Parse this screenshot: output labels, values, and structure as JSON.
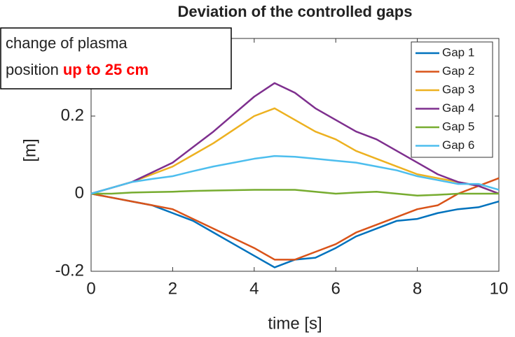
{
  "chart_data": {
    "type": "line",
    "title": "Deviation of the controlled gaps",
    "xlabel": "time [s]",
    "ylabel": "[m]",
    "annotation": {
      "line1": "change of plasma",
      "line2": "position",
      "highlight": "up to 25 cm",
      "highlight_color": "#ff0000"
    },
    "x": [
      0,
      0.5,
      1,
      1.5,
      2,
      2.5,
      3,
      3.5,
      4,
      4.5,
      5,
      5.5,
      6,
      6.5,
      7,
      7.5,
      8,
      8.5,
      9,
      9.5,
      10
    ],
    "series": [
      {
        "name": "Gap 1",
        "color": "#0072BD",
        "values": [
          0,
          -0.01,
          -0.02,
          -0.03,
          -0.05,
          -0.07,
          -0.1,
          -0.13,
          -0.16,
          -0.19,
          -0.17,
          -0.165,
          -0.14,
          -0.11,
          -0.09,
          -0.07,
          -0.065,
          -0.05,
          -0.04,
          -0.035,
          -0.02
        ]
      },
      {
        "name": "Gap 2",
        "color": "#D95319",
        "values": [
          0,
          -0.01,
          -0.02,
          -0.03,
          -0.04,
          -0.065,
          -0.09,
          -0.115,
          -0.14,
          -0.17,
          -0.17,
          -0.15,
          -0.13,
          -0.1,
          -0.08,
          -0.06,
          -0.04,
          -0.03,
          0,
          0.02,
          0.04
        ]
      },
      {
        "name": "Gap 3",
        "color": "#EDB120",
        "values": [
          0,
          0.015,
          0.03,
          0.05,
          0.07,
          0.1,
          0.13,
          0.165,
          0.2,
          0.22,
          0.19,
          0.16,
          0.14,
          0.11,
          0.09,
          0.07,
          0.05,
          0.04,
          0.03,
          0.02,
          0
        ]
      },
      {
        "name": "Gap 4",
        "color": "#7E2F8E",
        "values": [
          0,
          0.015,
          0.03,
          0.055,
          0.08,
          0.12,
          0.16,
          0.205,
          0.25,
          0.285,
          0.26,
          0.22,
          0.19,
          0.16,
          0.14,
          0.11,
          0.08,
          0.05,
          0.03,
          0.02,
          0
        ]
      },
      {
        "name": "Gap 5",
        "color": "#77AC30",
        "values": [
          0,
          0,
          0.003,
          0.004,
          0.005,
          0.007,
          0.008,
          0.009,
          0.01,
          0.01,
          0.01,
          0.005,
          0,
          0.003,
          0.005,
          0,
          -0.005,
          -0.003,
          0,
          0,
          0
        ]
      },
      {
        "name": "Gap 6",
        "color": "#4DBEEE",
        "values": [
          0,
          0.015,
          0.03,
          0.038,
          0.045,
          0.058,
          0.07,
          0.08,
          0.09,
          0.097,
          0.095,
          0.09,
          0.085,
          0.08,
          0.07,
          0.06,
          0.045,
          0.035,
          0.025,
          0.025,
          0.01
        ]
      }
    ],
    "xlim": [
      0,
      10
    ],
    "xticks": [
      0,
      2,
      4,
      6,
      8,
      10
    ],
    "ylim": [
      -0.2,
      0.4
    ],
    "yticks": [
      -0.2,
      0,
      0.2,
      0.4
    ],
    "grid": false,
    "legend": "northeast"
  }
}
